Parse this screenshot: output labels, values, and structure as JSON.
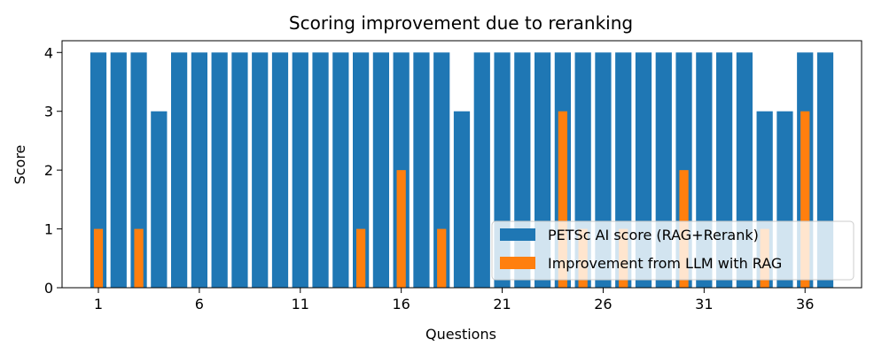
{
  "chart_data": {
    "type": "bar",
    "title": "Scoring improvement due to reranking",
    "xlabel": "Questions",
    "ylabel": "Score",
    "xlim": [
      -0.8,
      38.8
    ],
    "ylim": [
      0,
      4.2
    ],
    "xticks": [
      1,
      6,
      11,
      16,
      21,
      26,
      31,
      36
    ],
    "yticks": [
      0,
      1,
      2,
      3,
      4
    ],
    "categories": [
      1,
      2,
      3,
      4,
      5,
      6,
      7,
      8,
      9,
      10,
      11,
      12,
      13,
      14,
      15,
      16,
      17,
      18,
      19,
      20,
      21,
      22,
      23,
      24,
      25,
      26,
      27,
      28,
      29,
      30,
      31,
      32,
      33,
      34,
      35,
      36,
      37
    ],
    "legend_position": "bottom-right",
    "series": [
      {
        "name": "PETSc AI score (RAG+Rerank)",
        "color": "#1f77b4",
        "values": [
          4,
          4,
          4,
          3,
          4,
          4,
          4,
          4,
          4,
          4,
          4,
          4,
          4,
          4,
          4,
          4,
          4,
          4,
          3,
          4,
          4,
          4,
          4,
          4,
          4,
          4,
          4,
          4,
          4,
          4,
          4,
          4,
          4,
          3,
          3,
          4,
          4
        ]
      },
      {
        "name": "Improvement from LLM with RAG",
        "color": "#ff7f0e",
        "values": [
          1,
          0,
          1,
          0,
          0,
          0,
          0,
          0,
          0,
          0,
          0,
          0,
          0,
          1,
          0,
          2,
          0,
          1,
          0,
          0,
          0,
          0,
          0,
          3,
          1,
          0,
          1,
          0,
          0,
          2,
          0,
          0,
          0,
          1,
          0,
          3,
          0
        ]
      }
    ]
  }
}
